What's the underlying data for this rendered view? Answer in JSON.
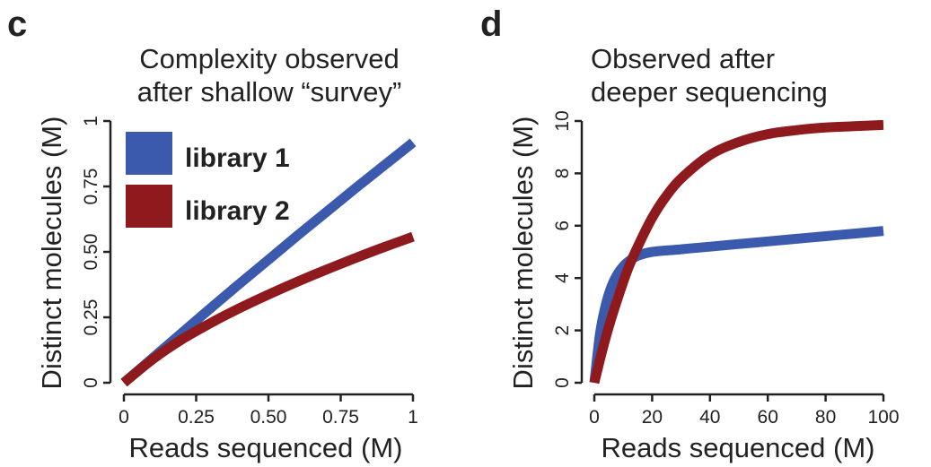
{
  "panels": {
    "c": {
      "letter": "c"
    },
    "d": {
      "letter": "d"
    }
  },
  "colors": {
    "library1": "#3b5aae",
    "library2": "#8e1a1e"
  },
  "chart_data": [
    {
      "type": "line",
      "title": [
        "Complexity observed",
        "after shallow “survey”"
      ],
      "xlabel": "Reads sequenced (M)",
      "ylabel": "Distinct molecules (M)",
      "xlim": [
        0,
        1
      ],
      "ylim": [
        0,
        1
      ],
      "xticks": [
        "0",
        "0.25",
        "0.50",
        "0.75",
        "1"
      ],
      "yticks": [
        "0",
        "0.25",
        "0.50",
        "0.75",
        "1"
      ],
      "legend": {
        "placement": "top-left",
        "entries": [
          "library 1",
          "library 2"
        ]
      },
      "series": [
        {
          "name": "library 1",
          "x": [
            0,
            0.1,
            0.2,
            0.3,
            0.4,
            0.5,
            0.6,
            0.7,
            0.8,
            0.9,
            1.0
          ],
          "y": [
            0,
            0.095,
            0.19,
            0.285,
            0.378,
            0.47,
            0.562,
            0.652,
            0.742,
            0.83,
            0.918
          ]
        },
        {
          "name": "library 2",
          "x": [
            0,
            0.1,
            0.2,
            0.3,
            0.4,
            0.5,
            0.6,
            0.7,
            0.8,
            0.9,
            1.0
          ],
          "y": [
            0,
            0.09,
            0.165,
            0.228,
            0.285,
            0.337,
            0.386,
            0.432,
            0.476,
            0.518,
            0.558
          ]
        }
      ]
    },
    {
      "type": "line",
      "title": [
        "Observed after",
        "deeper sequencing"
      ],
      "xlabel": "Reads sequenced (M)",
      "ylabel": "Distinct molecules (M)",
      "xlim": [
        0,
        100
      ],
      "ylim": [
        0,
        10
      ],
      "xticks": [
        "0",
        "20",
        "40",
        "60",
        "80",
        "100"
      ],
      "yticks": [
        "0",
        "2",
        "4",
        "6",
        "8",
        "10"
      ],
      "series": [
        {
          "name": "library 1",
          "x": [
            0,
            2,
            4,
            6,
            8,
            10,
            12,
            15,
            20,
            30,
            40,
            50,
            60,
            70,
            80,
            90,
            100
          ],
          "y": [
            0,
            1.9,
            3.0,
            3.7,
            4.15,
            4.45,
            4.65,
            4.85,
            5.0,
            5.1,
            5.2,
            5.3,
            5.4,
            5.5,
            5.6,
            5.7,
            5.8
          ]
        },
        {
          "name": "library 2",
          "x": [
            0,
            2,
            4,
            6,
            8,
            10,
            12,
            15,
            20,
            25,
            30,
            40,
            50,
            60,
            70,
            80,
            90,
            100
          ],
          "y": [
            0,
            0.9,
            1.75,
            2.5,
            3.2,
            3.85,
            4.45,
            5.2,
            6.3,
            7.15,
            7.8,
            8.7,
            9.2,
            9.5,
            9.65,
            9.75,
            9.8,
            9.85
          ]
        }
      ]
    }
  ]
}
